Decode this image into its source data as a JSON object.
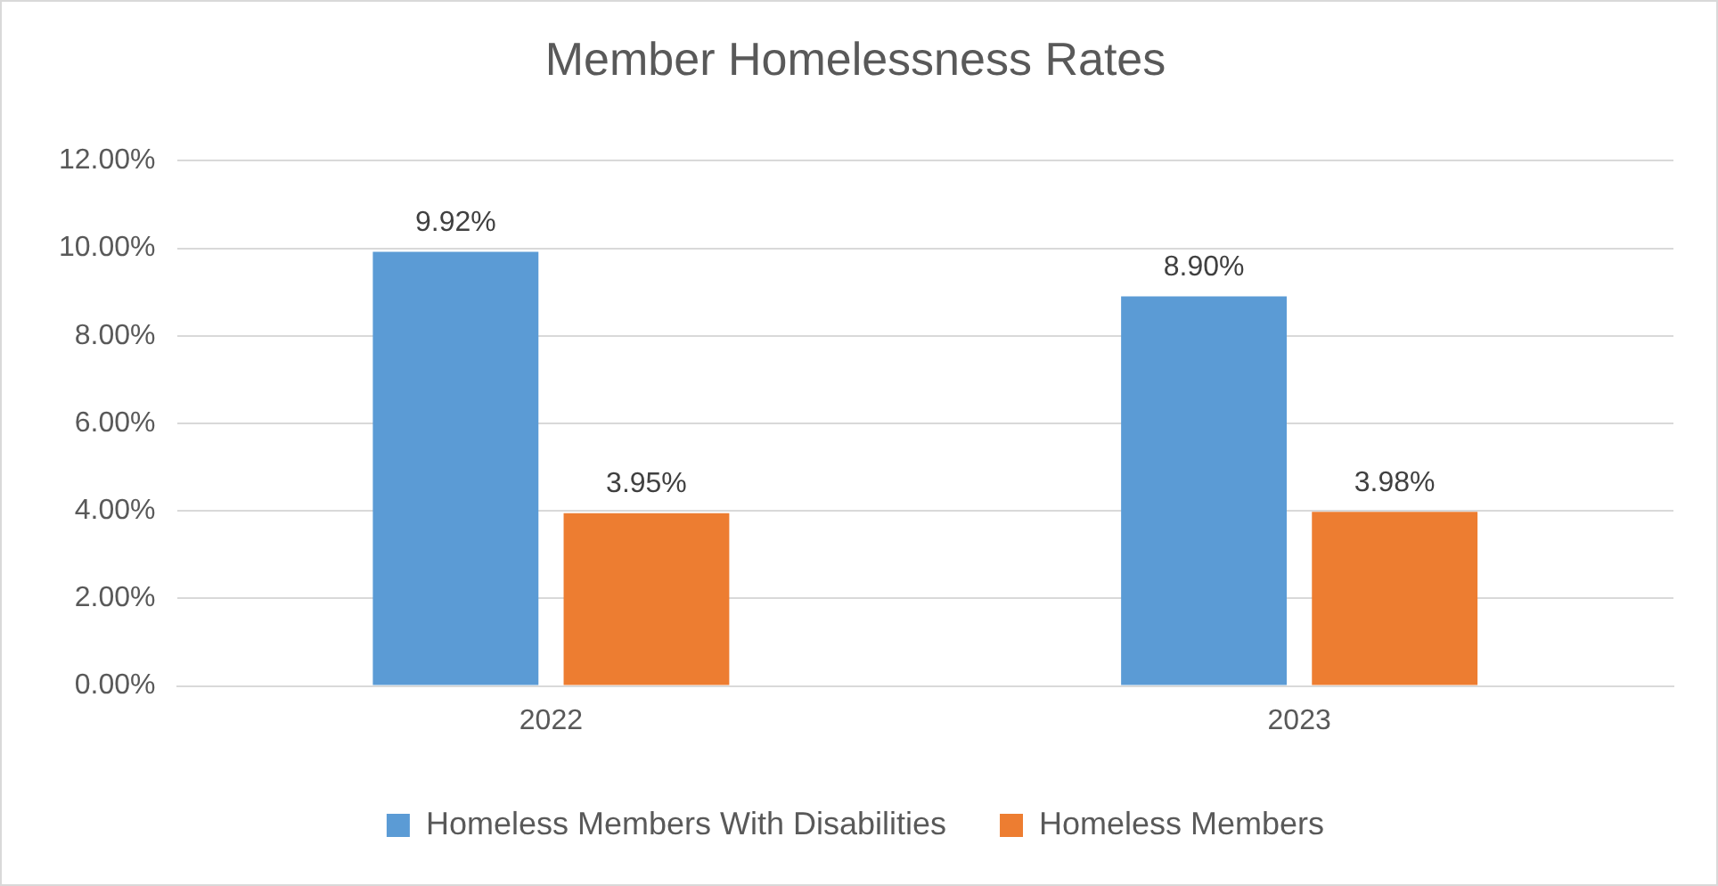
{
  "chart_data": {
    "type": "bar",
    "title": "Member Homelessness Rates",
    "categories": [
      "2022",
      "2023"
    ],
    "series": [
      {
        "name": "Homeless Members With Disabilities",
        "color": "#5b9bd5",
        "values": [
          9.92,
          8.9
        ],
        "value_labels": [
          "9.92%",
          "8.90%"
        ]
      },
      {
        "name": "Homeless Members",
        "color": "#ed7d31",
        "values": [
          3.95,
          3.98
        ],
        "value_labels": [
          "3.95%",
          "3.98%"
        ]
      }
    ],
    "ylim": [
      0,
      12
    ],
    "yticks": [
      {
        "value": 0,
        "label": "0.00%"
      },
      {
        "value": 2,
        "label": "2.00%"
      },
      {
        "value": 4,
        "label": "4.00%"
      },
      {
        "value": 6,
        "label": "6.00%"
      },
      {
        "value": 8,
        "label": "8.00%"
      },
      {
        "value": 10,
        "label": "10.00%"
      },
      {
        "value": 12,
        "label": "12.00%"
      }
    ],
    "grid": "y",
    "legend": "bottom"
  }
}
